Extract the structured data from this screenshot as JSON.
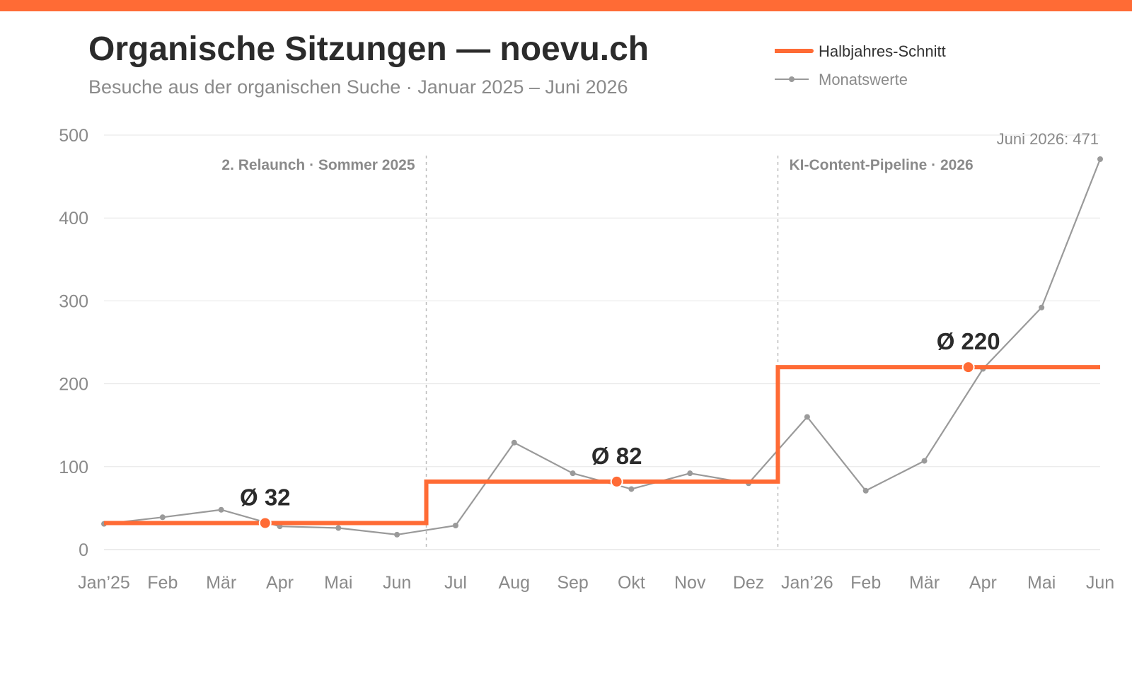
{
  "header": {
    "title": "Organische Sitzungen — noevu.ch",
    "subtitle": "Besuche aus der organischen Suche · Januar 2025 – Juni 2026"
  },
  "legend": {
    "average_label": "Halbjahres-Schnitt",
    "monthly_label": "Monatswerte"
  },
  "colors": {
    "accent": "#ff6b35",
    "monthly_line": "#9a9a9a",
    "grid": "#e5e5e5",
    "event_line": "#bbbbbb"
  },
  "chart_data": {
    "type": "line",
    "title": "Organische Sitzungen — noevu.ch",
    "subtitle": "Besuche aus der organischen Suche · Januar 2025 – Juni 2026",
    "categories": [
      "Jan’25",
      "Feb",
      "Mär",
      "Apr",
      "Mai",
      "Jun",
      "Jul",
      "Aug",
      "Sep",
      "Okt",
      "Nov",
      "Dez",
      "Jan’26",
      "Feb",
      "Mär",
      "Apr",
      "Mai",
      "Jun"
    ],
    "yticks": [
      0,
      100,
      200,
      300,
      400,
      500
    ],
    "ylim": [
      0,
      500
    ],
    "grid": true,
    "legend_position": "top-right",
    "series": [
      {
        "name": "Monatswerte",
        "style": "line-with-markers",
        "values": [
          31,
          39,
          48,
          28,
          26,
          18,
          29,
          129,
          92,
          73,
          92,
          80,
          160,
          71,
          107,
          218,
          292,
          471
        ]
      },
      {
        "name": "Halbjahres-Schnitt",
        "style": "step",
        "segments": [
          {
            "from": "Jan’25",
            "to": "Jun",
            "value": 32,
            "label": "Ø 32"
          },
          {
            "from": "Jul",
            "to": "Dez",
            "value": 82,
            "label": "Ø 82"
          },
          {
            "from": "Jan’26",
            "to": "Jun",
            "value": 220,
            "label": "Ø 220"
          }
        ]
      }
    ],
    "events": [
      {
        "label": "2. Relaunch · Sommer 2025",
        "between": [
          "Jun",
          "Jul"
        ],
        "label_side": "left"
      },
      {
        "label": "KI-Content-Pipeline · 2026",
        "between": [
          "Dez",
          "Jan’26"
        ],
        "label_side": "right"
      }
    ],
    "annotations": [
      {
        "label": "Juni 2026: 471",
        "category_index": 17,
        "value": 471
      }
    ]
  }
}
